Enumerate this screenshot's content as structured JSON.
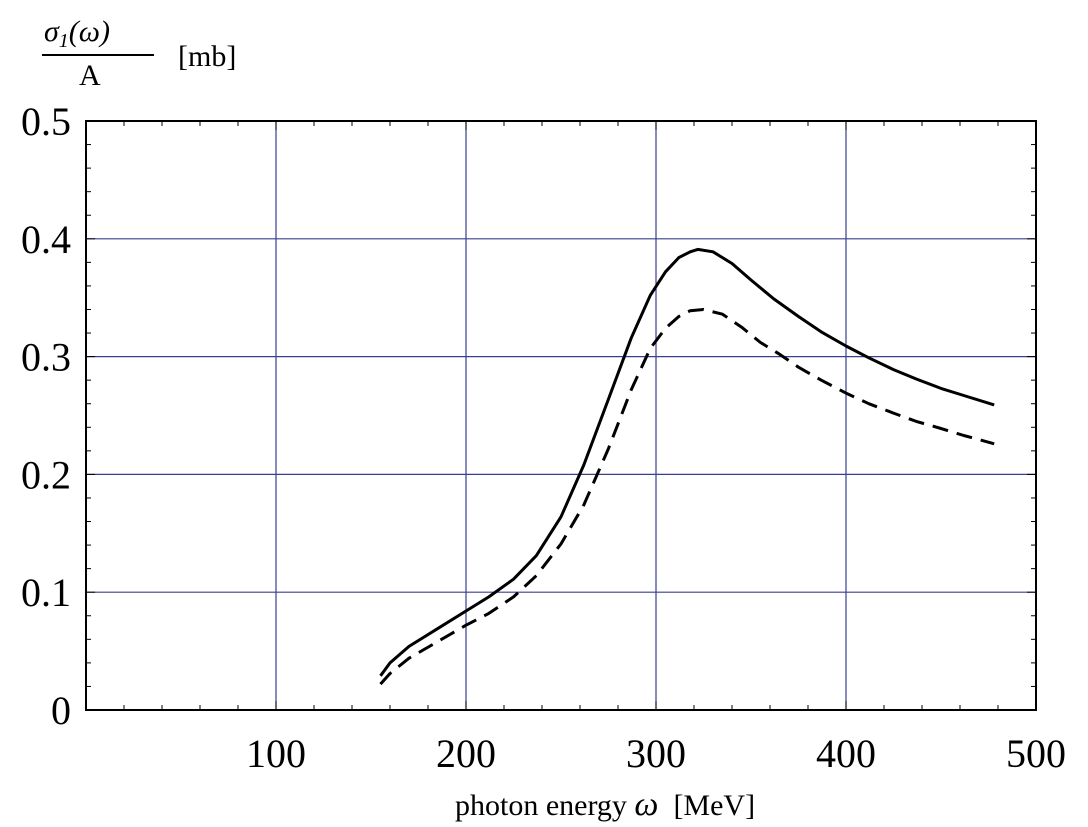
{
  "chart_data": {
    "type": "line",
    "ylabel": {
      "numerator_symbol": "σ",
      "numerator_subscript": "1",
      "numerator_arg": "(ω)",
      "denominator": "A",
      "unit": "[mb]"
    },
    "xlabel": {
      "prefix": "photon energy ",
      "symbol": "ω",
      "unit": "  [MeV]"
    },
    "xlim": [
      0,
      500
    ],
    "ylim": [
      0,
      0.5
    ],
    "x_ticks": [
      100,
      200,
      300,
      400,
      500
    ],
    "y_ticks": [
      0,
      0.1,
      0.2,
      0.3,
      0.4,
      0.5
    ],
    "x_tick_labels": [
      "100",
      "200",
      "300",
      "400",
      "500"
    ],
    "y_tick_labels": [
      "0",
      "0.1",
      "0.2",
      "0.3",
      "0.4",
      "0.5"
    ],
    "grid": true,
    "colors": {
      "grid": "#3a3f8f",
      "frame": "#000000",
      "lines": "#000000"
    },
    "series": [
      {
        "style": "solid",
        "points": [
          [
            155,
            0.029
          ],
          [
            160,
            0.04
          ],
          [
            170,
            0.054
          ],
          [
            185,
            0.069
          ],
          [
            200,
            0.084
          ],
          [
            212,
            0.096
          ],
          [
            225,
            0.111
          ],
          [
            237,
            0.131
          ],
          [
            250,
            0.164
          ],
          [
            262,
            0.208
          ],
          [
            275,
            0.264
          ],
          [
            287,
            0.316
          ],
          [
            297,
            0.352
          ],
          [
            305,
            0.372
          ],
          [
            312,
            0.384
          ],
          [
            318,
            0.389
          ],
          [
            322,
            0.391
          ],
          [
            330,
            0.389
          ],
          [
            340,
            0.379
          ],
          [
            350,
            0.365
          ],
          [
            362,
            0.349
          ],
          [
            375,
            0.334
          ],
          [
            387,
            0.321
          ],
          [
            400,
            0.309
          ],
          [
            412,
            0.299
          ],
          [
            425,
            0.289
          ],
          [
            437,
            0.281
          ],
          [
            450,
            0.273
          ],
          [
            462,
            0.267
          ],
          [
            478,
            0.259
          ]
        ]
      },
      {
        "style": "dashed",
        "points": [
          [
            155,
            0.022
          ],
          [
            160,
            0.031
          ],
          [
            170,
            0.044
          ],
          [
            185,
            0.058
          ],
          [
            200,
            0.072
          ],
          [
            212,
            0.082
          ],
          [
            225,
            0.096
          ],
          [
            237,
            0.114
          ],
          [
            250,
            0.141
          ],
          [
            262,
            0.174
          ],
          [
            275,
            0.222
          ],
          [
            287,
            0.272
          ],
          [
            297,
            0.307
          ],
          [
            305,
            0.324
          ],
          [
            312,
            0.334
          ],
          [
            318,
            0.339
          ],
          [
            325,
            0.34
          ],
          [
            335,
            0.336
          ],
          [
            345,
            0.325
          ],
          [
            355,
            0.312
          ],
          [
            365,
            0.302
          ],
          [
            375,
            0.291
          ],
          [
            387,
            0.28
          ],
          [
            400,
            0.269
          ],
          [
            412,
            0.26
          ],
          [
            425,
            0.252
          ],
          [
            437,
            0.245
          ],
          [
            450,
            0.239
          ],
          [
            462,
            0.233
          ],
          [
            478,
            0.226
          ]
        ]
      }
    ]
  }
}
